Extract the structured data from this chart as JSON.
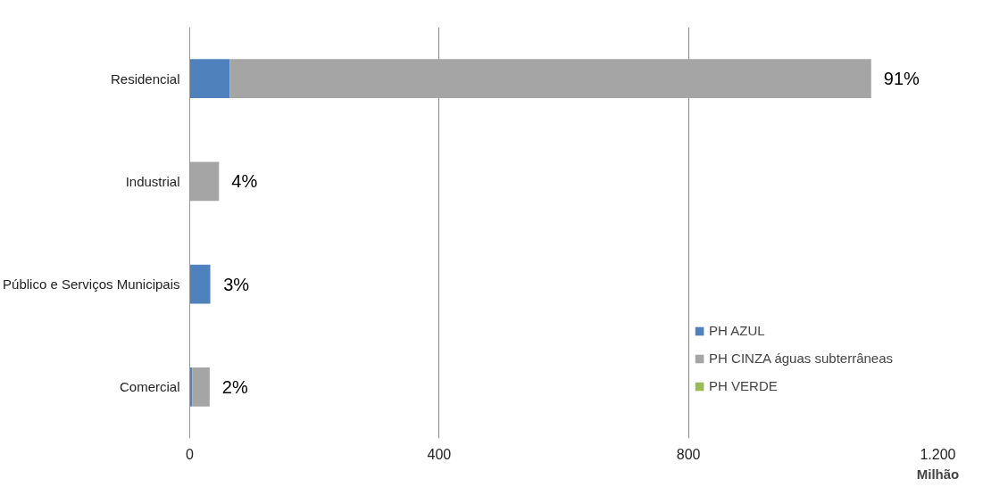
{
  "chart_data": {
    "type": "bar",
    "orientation": "horizontal",
    "stacked": true,
    "categories": [
      "Residencial",
      "Industrial",
      "Público e Serviços Municipais",
      "Comercial"
    ],
    "series": [
      {
        "name": "PH AZUL",
        "color": "#4f81bd",
        "values": [
          64,
          0,
          33,
          4
        ]
      },
      {
        "name": "PH CINZA águas subterrâneas",
        "color": "#a5a5a5",
        "values": [
          1029,
          47,
          0,
          28
        ]
      },
      {
        "name": "PH VERDE",
        "color": "#9bbb59",
        "values": [
          0,
          0,
          0,
          0
        ]
      }
    ],
    "xlim": [
      0,
      1200
    ],
    "xticks": [
      0,
      400,
      800,
      {
        "value": 1200,
        "label": "1.200"
      }
    ],
    "xlabel": "Milhão",
    "grid": "x",
    "legend": "right",
    "annotations": [
      {
        "text": "91%",
        "x": 1093,
        "y": "Residencial"
      },
      {
        "text": "4%",
        "x": 47,
        "y": "Industrial"
      },
      {
        "text": "3%",
        "x": 34,
        "y": "Público e Serviços Municipais"
      },
      {
        "text": "2%",
        "x": 32,
        "y": "Comercial"
      }
    ]
  }
}
